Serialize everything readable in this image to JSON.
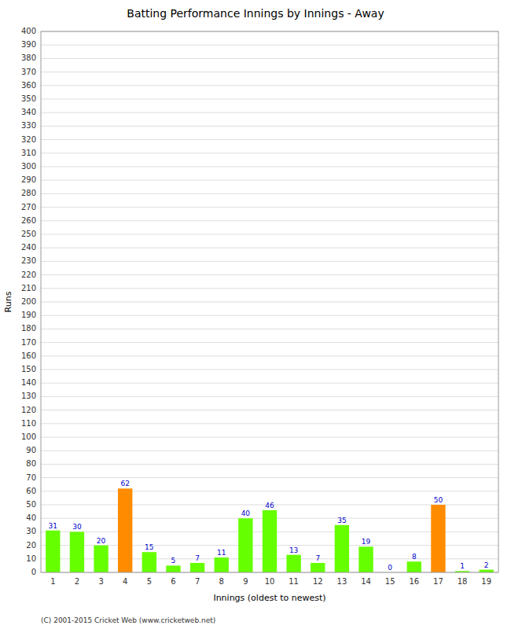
{
  "chart_data": {
    "type": "bar",
    "title": "Batting Performance Innings by Innings - Away",
    "xlabel": "Innings (oldest to newest)",
    "ylabel": "Runs",
    "annotations": [
      "(C) 2001-2015 Cricket Web (www.cricketweb.net)"
    ],
    "categories": [
      1,
      2,
      3,
      4,
      5,
      6,
      7,
      8,
      9,
      10,
      11,
      12,
      13,
      14,
      15,
      16,
      17,
      18,
      19
    ],
    "values": [
      31,
      30,
      20,
      62,
      15,
      5,
      7,
      11,
      40,
      46,
      13,
      7,
      35,
      19,
      0,
      8,
      50,
      1,
      2
    ],
    "colors": [
      "#66ff00",
      "#66ff00",
      "#66ff00",
      "#ff8c00",
      "#66ff00",
      "#66ff00",
      "#66ff00",
      "#66ff00",
      "#66ff00",
      "#66ff00",
      "#66ff00",
      "#66ff00",
      "#66ff00",
      "#66ff00",
      "#66ff00",
      "#66ff00",
      "#ff8c00",
      "#66ff00",
      "#66ff00"
    ],
    "ylim": [
      0,
      400
    ],
    "yticks": [
      0,
      10,
      20,
      30,
      40,
      50,
      60,
      70,
      80,
      90,
      100,
      110,
      120,
      130,
      140,
      150,
      160,
      170,
      180,
      190,
      200,
      210,
      220,
      230,
      240,
      250,
      260,
      270,
      280,
      290,
      300,
      310,
      320,
      330,
      340,
      350,
      360,
      370,
      380,
      390,
      400
    ],
    "grid": true,
    "data_labels": true
  }
}
